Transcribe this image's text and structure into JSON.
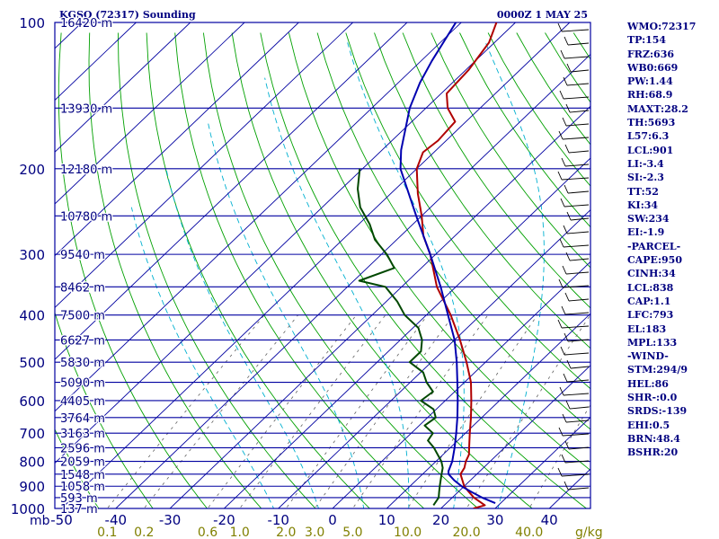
{
  "chart_data": {
    "type": "line",
    "title": "KGSO (72317) Sounding",
    "subtitle": "0000Z  1 MAY 25",
    "diagram": "skew-t log-p",
    "y_axis_unit_label": "mb",
    "pressure_levels": [
      100,
      200,
      300,
      400,
      500,
      600,
      700,
      800,
      900,
      1000
    ],
    "height_labels": [
      {
        "p": 100,
        "label": "16420 m"
      },
      {
        "p": 150,
        "label": "13930 m"
      },
      {
        "p": 200,
        "label": "12180 m"
      },
      {
        "p": 250,
        "label": "10780 m"
      },
      {
        "p": 300,
        "label": "9540 m"
      },
      {
        "p": 350,
        "label": "8462 m"
      },
      {
        "p": 400,
        "label": "7500 m"
      },
      {
        "p": 450,
        "label": "6627 m"
      },
      {
        "p": 500,
        "label": "5830 m"
      },
      {
        "p": 550,
        "label": "5090 m"
      },
      {
        "p": 600,
        "label": "4405 m"
      },
      {
        "p": 650,
        "label": "3764 m"
      },
      {
        "p": 700,
        "label": "3163 m"
      },
      {
        "p": 750,
        "label": "2596 m"
      },
      {
        "p": 800,
        "label": "2059 m"
      },
      {
        "p": 850,
        "label": "1548 m"
      },
      {
        "p": 900,
        "label": "1058 m"
      },
      {
        "p": 950,
        "label": "593 m"
      },
      {
        "p": 1000,
        "label": "137 m"
      }
    ],
    "temperature_ticks": [
      "-50",
      "-40",
      "-30",
      "-20",
      "-10",
      "0",
      "10",
      "20",
      "30",
      "40"
    ],
    "mixing_ratio_ticks": [
      "0.1",
      "0.2",
      "0.6",
      "1.0",
      "2.0",
      "3.0",
      "5.0",
      "10.0",
      "20.0",
      "40.0"
    ],
    "mixing_ratio_unit": "g/kg",
    "series": [
      {
        "kind": "temperature",
        "color": "#b00000",
        "points": [
          [
            1000,
            26
          ],
          [
            985,
            27.5
          ],
          [
            950,
            24
          ],
          [
            925,
            22
          ],
          [
            900,
            20
          ],
          [
            850,
            17
          ],
          [
            825,
            16.5
          ],
          [
            800,
            15.5
          ],
          [
            775,
            14.8
          ],
          [
            750,
            13.5
          ],
          [
            700,
            10.8
          ],
          [
            650,
            8
          ],
          [
            600,
            4.8
          ],
          [
            550,
            1.2
          ],
          [
            500,
            -3.5
          ],
          [
            450,
            -9
          ],
          [
            400,
            -15.5
          ],
          [
            350,
            -23.5
          ],
          [
            300,
            -31
          ],
          [
            275,
            -35.8
          ],
          [
            250,
            -40
          ],
          [
            225,
            -45
          ],
          [
            200,
            -50
          ],
          [
            185,
            -52
          ],
          [
            175,
            -51.5
          ],
          [
            160,
            -52
          ],
          [
            150,
            -56
          ],
          [
            140,
            -59
          ],
          [
            125,
            -59.5
          ],
          [
            110,
            -61
          ],
          [
            100,
            -63.5
          ]
        ]
      },
      {
        "kind": "dewpoint",
        "color": "#004800",
        "points": [
          [
            985,
            18
          ],
          [
            950,
            17.5
          ],
          [
            925,
            16.5
          ],
          [
            900,
            15.5
          ],
          [
            850,
            13.5
          ],
          [
            825,
            12.5
          ],
          [
            800,
            11
          ],
          [
            750,
            7
          ],
          [
            725,
            4.5
          ],
          [
            700,
            4
          ],
          [
            675,
            1
          ],
          [
            650,
            1.5
          ],
          [
            625,
            -0.5
          ],
          [
            600,
            -4.5
          ],
          [
            575,
            -4
          ],
          [
            550,
            -7
          ],
          [
            525,
            -9.5
          ],
          [
            500,
            -14
          ],
          [
            475,
            -14
          ],
          [
            450,
            -16
          ],
          [
            425,
            -19
          ],
          [
            400,
            -24
          ],
          [
            375,
            -28
          ],
          [
            350,
            -33
          ],
          [
            340,
            -39
          ],
          [
            320,
            -35
          ],
          [
            300,
            -39
          ],
          [
            280,
            -44
          ],
          [
            260,
            -48
          ],
          [
            240,
            -53
          ],
          [
            220,
            -57
          ],
          [
            200,
            -60.5
          ]
        ]
      },
      {
        "kind": "parcel",
        "color": "#0000b0",
        "points": [
          [
            975,
            29
          ],
          [
            950,
            25.5
          ],
          [
            925,
            22.5
          ],
          [
            900,
            19.5
          ],
          [
            875,
            17
          ],
          [
            850,
            14.8
          ],
          [
            838,
            14.2
          ],
          [
            800,
            13
          ],
          [
            750,
            10.8
          ],
          [
            700,
            8.3
          ],
          [
            650,
            5.5
          ],
          [
            600,
            2.3
          ],
          [
            550,
            -1.3
          ],
          [
            500,
            -5.3
          ],
          [
            450,
            -10
          ],
          [
            400,
            -16
          ],
          [
            350,
            -22.8
          ],
          [
            300,
            -31
          ],
          [
            250,
            -41
          ],
          [
            200,
            -53
          ],
          [
            183,
            -56.5
          ],
          [
            150,
            -63
          ],
          [
            133,
            -66
          ],
          [
            120,
            -68
          ],
          [
            100,
            -71
          ]
        ]
      }
    ]
  },
  "stats": [
    "WMO:72317",
    "TP:154",
    "FRZ:636",
    "WB0:669",
    "PW:1.44",
    "RH:68.9",
    "MAXT:28.2",
    "TH:5693",
    "L57:6.3",
    "LCL:901",
    "LI:-3.4",
    "SI:-2.3",
    "TT:52",
    "KI:34",
    "SW:234",
    "EI:-1.9",
    "-PARCEL-",
    "CAPE:950",
    "CINH:34",
    "LCL:838",
    "CAP:1.1",
    "LFC:793",
    "EL:183",
    "MPL:133",
    "-WIND-",
    "STM:294/9",
    "HEL:86",
    "SHR-:0.0",
    "SRDS:-139",
    "EHI:0.5",
    "BRN:48.4",
    "BSHR:20"
  ]
}
